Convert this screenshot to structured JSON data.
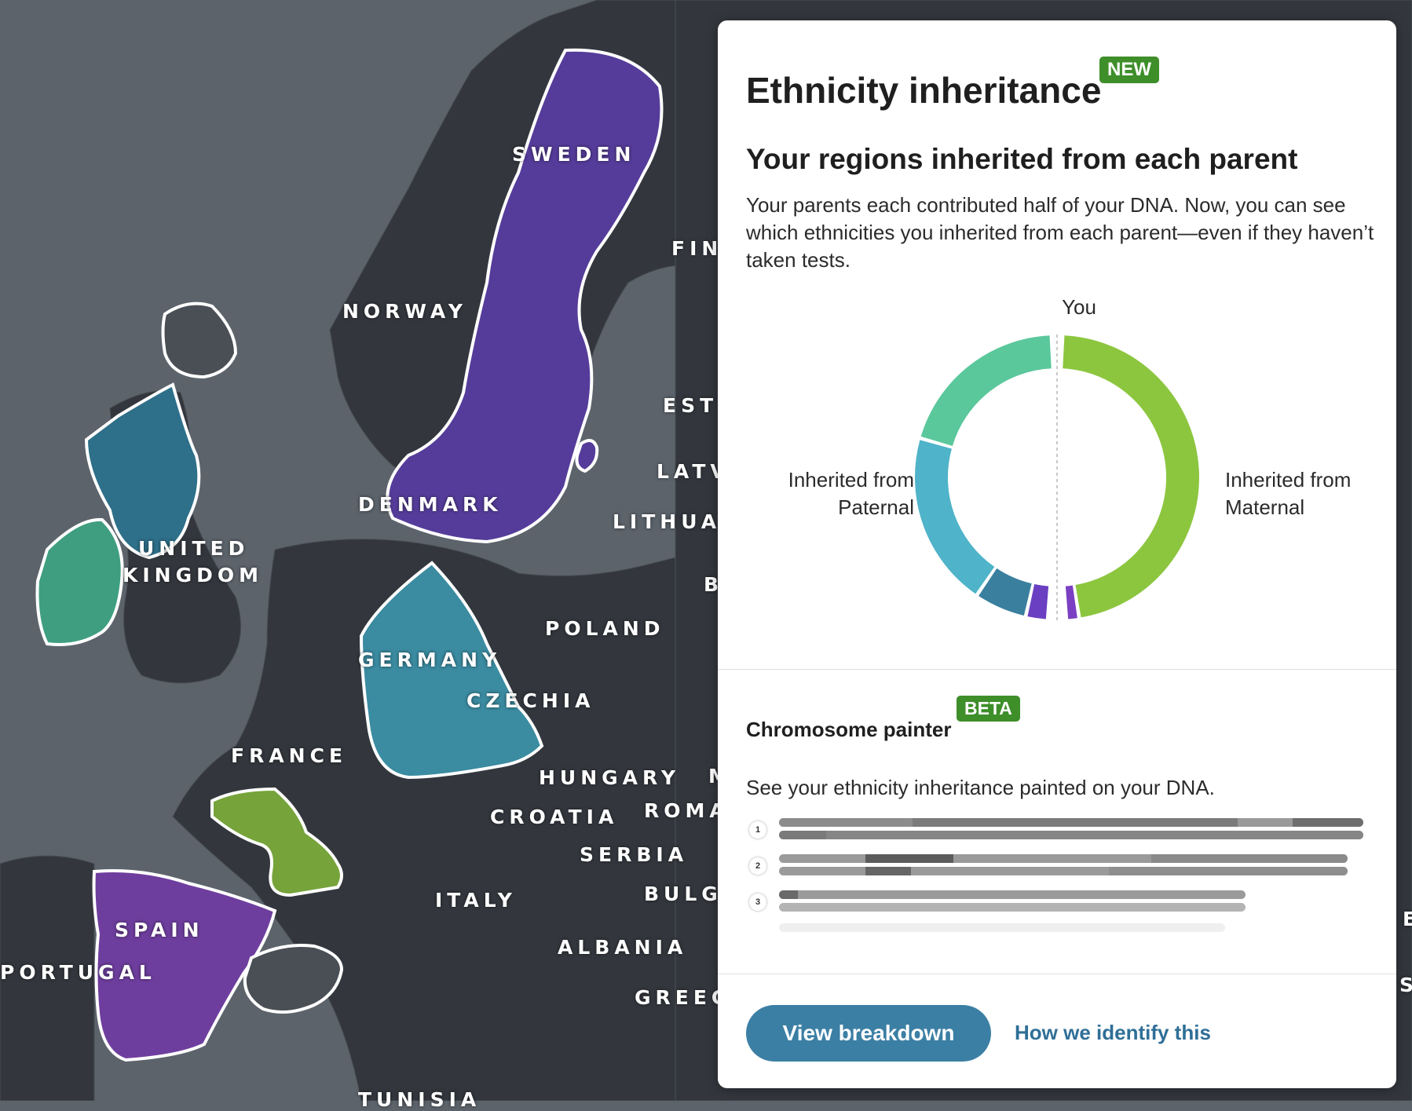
{
  "map": {
    "labels": [
      {
        "key": "sweden",
        "text": "SWEDEN"
      },
      {
        "key": "norway",
        "text": "NORWAY"
      },
      {
        "key": "finland",
        "text": "FIN"
      },
      {
        "key": "estonia",
        "text": "EST"
      },
      {
        "key": "latvia",
        "text": "LATV"
      },
      {
        "key": "lithuania",
        "text": "LITHUA"
      },
      {
        "key": "belarus",
        "text": "B"
      },
      {
        "key": "denmark",
        "text": "DENMARK"
      },
      {
        "key": "united",
        "text": "UNITED"
      },
      {
        "key": "kingdom",
        "text": "KINGDOM"
      },
      {
        "key": "poland",
        "text": "POLAND"
      },
      {
        "key": "germany",
        "text": "GERMANY"
      },
      {
        "key": "czechia",
        "text": "CZECHIA"
      },
      {
        "key": "france",
        "text": "FRANCE"
      },
      {
        "key": "hungary",
        "text": "HUNGARY"
      },
      {
        "key": "m",
        "text": "M"
      },
      {
        "key": "croatia",
        "text": "CROATIA"
      },
      {
        "key": "romania",
        "text": "ROMA"
      },
      {
        "key": "serbia",
        "text": "SERBIA"
      },
      {
        "key": "italy",
        "text": "ITALY"
      },
      {
        "key": "bulgaria",
        "text": "BULG"
      },
      {
        "key": "spain",
        "text": "SPAIN"
      },
      {
        "key": "portugal",
        "text": "PORTUGAL"
      },
      {
        "key": "albania",
        "text": "ALBANIA"
      },
      {
        "key": "greece",
        "text": "GREEC"
      },
      {
        "key": "tunisia",
        "text": "TUNISIA"
      },
      {
        "key": "e",
        "text": "E"
      },
      {
        "key": "s",
        "text": "S"
      }
    ]
  },
  "panel": {
    "title": "Ethnicity inheritance",
    "new_badge": "NEW",
    "subtitle": "Your regions inherited from each parent",
    "description": "Your parents each contributed half of your DNA. Now, you can see which ethnicities you inherited from each parent—even if they haven’t taken tests.",
    "you_label": "You",
    "paternal_label": "Inherited from Paternal",
    "maternal_label": "Inherited from Maternal",
    "painter_title": "Chromosome painter",
    "beta_badge": "BETA",
    "painter_desc": "See your ethnicity inheritance painted on your DNA.",
    "chromosomes": [
      "1",
      "2",
      "3"
    ],
    "view_button": "View breakdown",
    "how_link": "How we identify this"
  },
  "donut": {
    "paternal": [
      {
        "color": "#5bc89c",
        "fraction": 0.4
      },
      {
        "color": "#4fb3c9",
        "fraction": 0.4
      },
      {
        "color": "#3a7f9e",
        "fraction": 0.12
      },
      {
        "color": "#6a3fc2",
        "fraction": 0.05
      }
    ],
    "maternal": [
      {
        "color": "#8cc63f",
        "fraction": 0.97
      },
      {
        "color": "#7a3fc2",
        "fraction": 0.03
      }
    ]
  },
  "colors": {
    "accent": "#3c7fa4",
    "badge_green": "#3e8e2a",
    "sweden": "#553c9a",
    "uk": "#2e6f89",
    "ireland": "#3f9e80",
    "germany": "#3b8ba1",
    "france": "#76a33a",
    "spain": "#6e3e9e"
  }
}
